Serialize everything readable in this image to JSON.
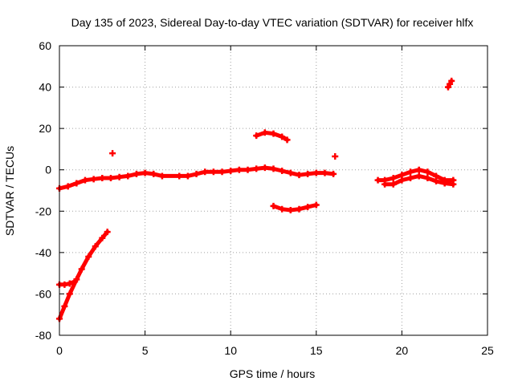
{
  "chart_data": {
    "type": "scatter",
    "title": "Day 135 of 2023, Sidereal Day-to-day VTEC variation (SDTVAR) for receiver hlfx",
    "xlabel": "GPS time / hours",
    "ylabel": "SDTVAR / TECUs",
    "xlim": [
      0,
      25
    ],
    "ylim": [
      -80,
      60
    ],
    "xticks": [
      0,
      5,
      10,
      15,
      20,
      25
    ],
    "yticks": [
      -80,
      -60,
      -40,
      -20,
      0,
      20,
      40,
      60
    ],
    "grid": true,
    "marker": "plus",
    "series": [
      {
        "name": "SDTVAR",
        "color": "#ff0000",
        "segments": [
          {
            "name": "main-band",
            "points": [
              [
                0,
                -9
              ],
              [
                0.5,
                -8
              ],
              [
                1,
                -6.5
              ],
              [
                1.5,
                -5
              ],
              [
                2,
                -4.5
              ],
              [
                2.5,
                -4
              ],
              [
                3,
                -4
              ],
              [
                3.5,
                -3.5
              ],
              [
                4,
                -3
              ],
              [
                4.5,
                -2
              ],
              [
                5,
                -1.5
              ],
              [
                5.5,
                -2
              ],
              [
                6,
                -3
              ],
              [
                7,
                -3
              ],
              [
                7.5,
                -3
              ],
              [
                8,
                -2
              ],
              [
                8.5,
                -1
              ],
              [
                9,
                -1
              ],
              [
                9.5,
                -1
              ],
              [
                10,
                -0.5
              ],
              [
                10.5,
                0
              ],
              [
                11,
                0
              ],
              [
                11.5,
                0.5
              ],
              [
                12,
                1
              ],
              [
                12.5,
                0.5
              ],
              [
                13,
                -0.5
              ],
              [
                13.5,
                -1.5
              ],
              [
                14,
                -2.5
              ],
              [
                14.5,
                -2
              ],
              [
                15,
                -1.5
              ],
              [
                15.5,
                -1.5
              ],
              [
                16,
                -2
              ]
            ]
          },
          {
            "name": "early-descending-arc",
            "points": [
              [
                0,
                -72
              ],
              [
                0.3,
                -66
              ],
              [
                0.6,
                -60
              ],
              [
                1,
                -53
              ],
              [
                1.3,
                -48
              ],
              [
                1.7,
                -42
              ],
              [
                2.1,
                -37
              ],
              [
                2.5,
                -33
              ],
              [
                2.8,
                -30
              ]
            ]
          },
          {
            "name": "early-short-branch",
            "points": [
              [
                0,
                -55.5
              ],
              [
                0.3,
                -55.5
              ],
              [
                0.6,
                -55
              ],
              [
                0.9,
                -54
              ]
            ]
          },
          {
            "name": "isolated-point-3h",
            "points": [
              [
                3.1,
                8
              ]
            ]
          },
          {
            "name": "upper-arc",
            "points": [
              [
                11.5,
                16.5
              ],
              [
                12,
                18
              ],
              [
                12.5,
                17.5
              ],
              [
                13,
                16
              ],
              [
                13.3,
                14.5
              ]
            ]
          },
          {
            "name": "lower-arc",
            "points": [
              [
                12.5,
                -17.5
              ],
              [
                13,
                -19
              ],
              [
                13.5,
                -19.5
              ],
              [
                14,
                -19
              ],
              [
                14.5,
                -18
              ],
              [
                15,
                -17
              ]
            ]
          },
          {
            "name": "isolated-point-16h",
            "points": [
              [
                16.1,
                6.5
              ]
            ]
          },
          {
            "name": "late-band",
            "points": [
              [
                18.6,
                -5
              ],
              [
                19,
                -5
              ],
              [
                19.5,
                -4
              ],
              [
                20,
                -2.5
              ],
              [
                20.5,
                -1
              ],
              [
                21,
                0
              ],
              [
                21.5,
                -1
              ],
              [
                22,
                -3
              ],
              [
                22.5,
                -5
              ],
              [
                23,
                -5
              ]
            ]
          },
          {
            "name": "late-lower-scatter",
            "points": [
              [
                19,
                -7
              ],
              [
                19.5,
                -7
              ],
              [
                20,
                -5
              ],
              [
                20.5,
                -4
              ],
              [
                21,
                -3
              ],
              [
                21.5,
                -4
              ],
              [
                22,
                -5.5
              ],
              [
                22.5,
                -6.5
              ],
              [
                23,
                -7
              ]
            ]
          },
          {
            "name": "late-spike",
            "points": [
              [
                22.7,
                40
              ],
              [
                22.8,
                41.5
              ],
              [
                22.9,
                43
              ]
            ]
          }
        ]
      }
    ]
  }
}
